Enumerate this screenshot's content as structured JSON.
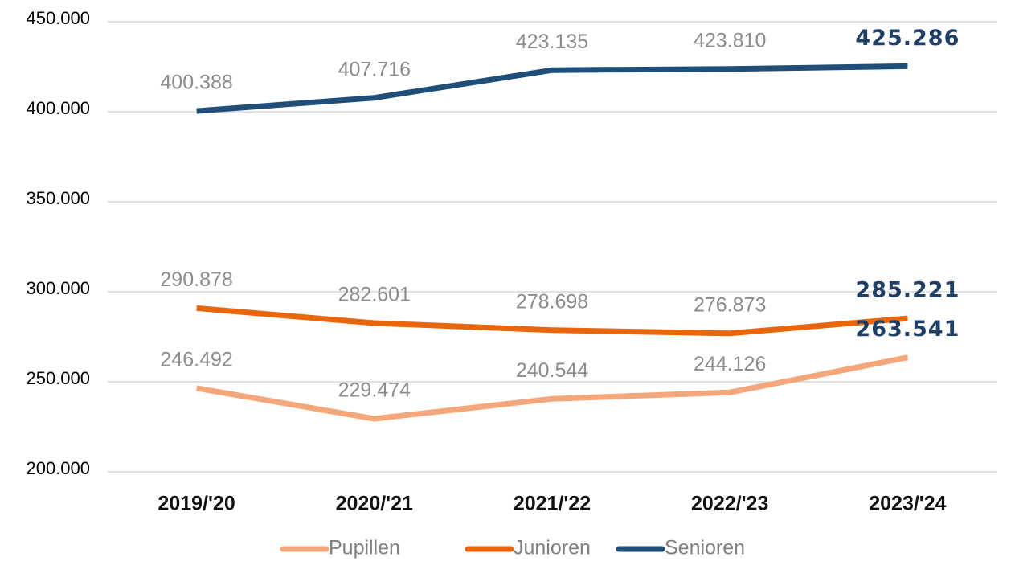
{
  "chart_data": {
    "type": "line",
    "categories": [
      "2019/'20",
      "2020/'21",
      "2021/'22",
      "2022/'23",
      "2023/'24"
    ],
    "series": [
      {
        "name": "Pupillen",
        "color": "#f4a77a",
        "values": [
          246492,
          229474,
          240544,
          244126,
          263541
        ],
        "value_labels": [
          "246.492",
          "229.474",
          "240.544",
          "244.126",
          "263.541"
        ]
      },
      {
        "name": "Junioren",
        "color": "#e8670c",
        "values": [
          290878,
          282601,
          278698,
          276873,
          285221
        ],
        "value_labels": [
          "290.878",
          "282.601",
          "278.698",
          "276.873",
          "285.221"
        ]
      },
      {
        "name": "Senioren",
        "color": "#1f4e79",
        "values": [
          400388,
          407716,
          423135,
          423810,
          425286
        ],
        "value_labels": [
          "400.388",
          "407.716",
          "423.135",
          "423.810",
          "425.286"
        ]
      }
    ],
    "ylim": [
      200000,
      450000
    ],
    "yticks": [
      {
        "value": 200000,
        "label": "200.000"
      },
      {
        "value": 250000,
        "label": "250.000"
      },
      {
        "value": 300000,
        "label": "300.000"
      },
      {
        "value": 350000,
        "label": "350.000"
      },
      {
        "value": 400000,
        "label": "400.000"
      },
      {
        "value": 450000,
        "label": "450.000"
      }
    ],
    "grid": true,
    "legend": "bottom"
  }
}
